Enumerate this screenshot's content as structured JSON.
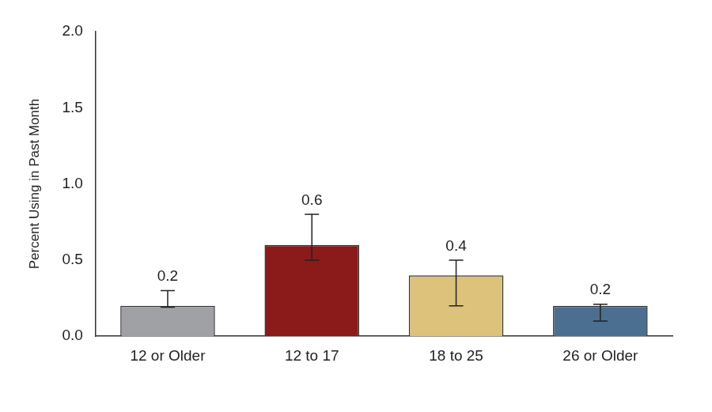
{
  "chart_data": {
    "type": "bar",
    "y_label": "Percent Using in Past Month",
    "categories": [
      "12 or Older",
      "12 to 17",
      "18 to 25",
      "26 or Older"
    ],
    "values": [
      0.2,
      0.6,
      0.4,
      0.2
    ],
    "error_low": [
      0.19,
      0.5,
      0.2,
      0.1
    ],
    "error_high": [
      0.3,
      0.8,
      0.5,
      0.21
    ],
    "colors": [
      "#a0a1a5",
      "#8b1a1a",
      "#dcc27a",
      "#4b6f91"
    ],
    "ylim": [
      0,
      2
    ],
    "yticks": [
      {
        "value": 0,
        "label": "0.0"
      },
      0.5,
      {
        "value": 1,
        "label": "1.0"
      },
      1.5,
      {
        "value": 2,
        "label": "2.0"
      }
    ],
    "grid": false,
    "data_labels": true
  }
}
